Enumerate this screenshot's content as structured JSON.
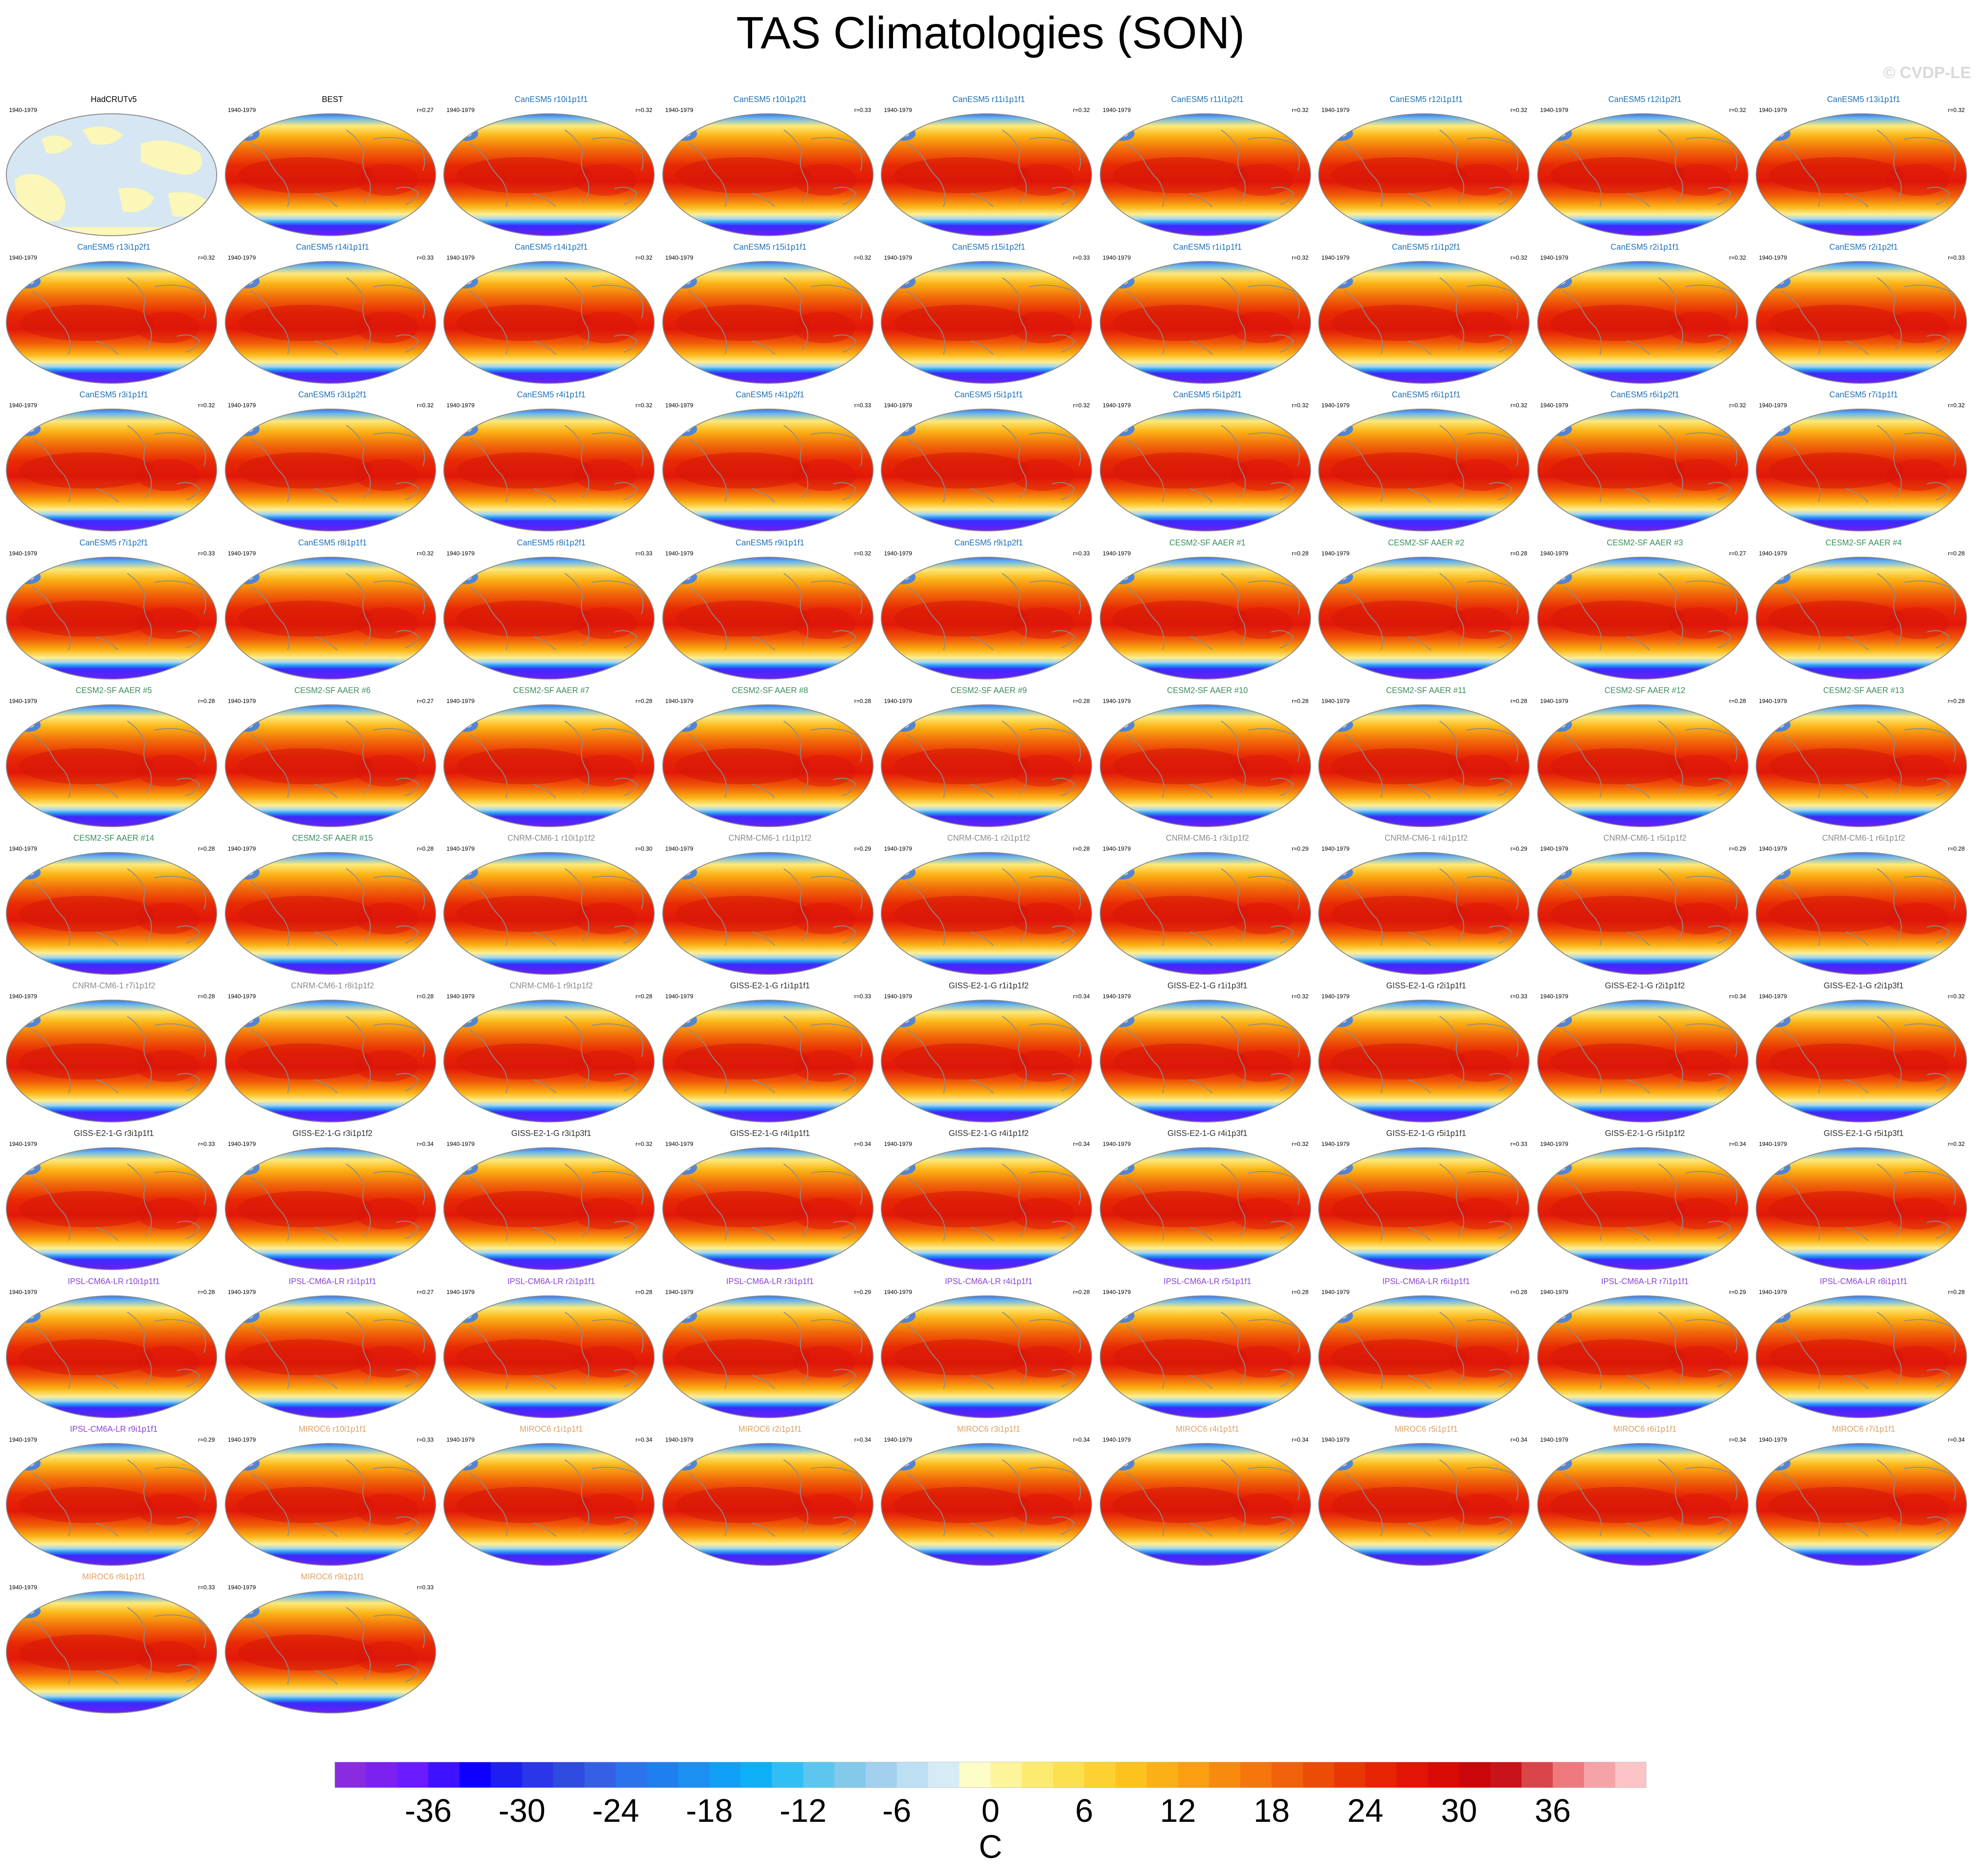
{
  "title": "TAS Climatologies (SON)",
  "credit": "© CVDP-LE",
  "period": "1940-1979",
  "panels": [
    {
      "name": "HadCRUTv5",
      "corr": "",
      "group": "obs-coverage"
    },
    {
      "name": "BEST",
      "corr": "r=0.27",
      "group": "obs"
    },
    {
      "name": "CanESM5 r10i1p1f1",
      "corr": "r=0.32",
      "group": "CanESM5"
    },
    {
      "name": "CanESM5 r10i1p2f1",
      "corr": "r=0.33",
      "group": "CanESM5"
    },
    {
      "name": "CanESM5 r11i1p1f1",
      "corr": "r=0.32",
      "group": "CanESM5"
    },
    {
      "name": "CanESM5 r11i1p2f1",
      "corr": "r=0.32",
      "group": "CanESM5"
    },
    {
      "name": "CanESM5 r12i1p1f1",
      "corr": "r=0.32",
      "group": "CanESM5"
    },
    {
      "name": "CanESM5 r12i1p2f1",
      "corr": "r=0.32",
      "group": "CanESM5"
    },
    {
      "name": "CanESM5 r13i1p1f1",
      "corr": "r=0.32",
      "group": "CanESM5"
    },
    {
      "name": "CanESM5 r13i1p2f1",
      "corr": "r=0.32",
      "group": "CanESM5"
    },
    {
      "name": "CanESM5 r14i1p1f1",
      "corr": "r=0.33",
      "group": "CanESM5"
    },
    {
      "name": "CanESM5 r14i1p2f1",
      "corr": "r=0.32",
      "group": "CanESM5"
    },
    {
      "name": "CanESM5 r15i1p1f1",
      "corr": "r=0.32",
      "group": "CanESM5"
    },
    {
      "name": "CanESM5 r15i1p2f1",
      "corr": "r=0.33",
      "group": "CanESM5"
    },
    {
      "name": "CanESM5 r1i1p1f1",
      "corr": "r=0.32",
      "group": "CanESM5"
    },
    {
      "name": "CanESM5 r1i1p2f1",
      "corr": "r=0.32",
      "group": "CanESM5"
    },
    {
      "name": "CanESM5 r2i1p1f1",
      "corr": "r=0.32",
      "group": "CanESM5"
    },
    {
      "name": "CanESM5 r2i1p2f1",
      "corr": "r=0.33",
      "group": "CanESM5"
    },
    {
      "name": "CanESM5 r3i1p1f1",
      "corr": "r=0.32",
      "group": "CanESM5"
    },
    {
      "name": "CanESM5 r3i1p2f1",
      "corr": "r=0.32",
      "group": "CanESM5"
    },
    {
      "name": "CanESM5 r4i1p1f1",
      "corr": "r=0.32",
      "group": "CanESM5"
    },
    {
      "name": "CanESM5 r4i1p2f1",
      "corr": "r=0.33",
      "group": "CanESM5"
    },
    {
      "name": "CanESM5 r5i1p1f1",
      "corr": "r=0.32",
      "group": "CanESM5"
    },
    {
      "name": "CanESM5 r5i1p2f1",
      "corr": "r=0.32",
      "group": "CanESM5"
    },
    {
      "name": "CanESM5 r6i1p1f1",
      "corr": "r=0.32",
      "group": "CanESM5"
    },
    {
      "name": "CanESM5 r6i1p2f1",
      "corr": "r=0.32",
      "group": "CanESM5"
    },
    {
      "name": "CanESM5 r7i1p1f1",
      "corr": "r=0.32",
      "group": "CanESM5"
    },
    {
      "name": "CanESM5 r7i1p2f1",
      "corr": "r=0.33",
      "group": "CanESM5"
    },
    {
      "name": "CanESM5 r8i1p1f1",
      "corr": "r=0.32",
      "group": "CanESM5"
    },
    {
      "name": "CanESM5 r8i1p2f1",
      "corr": "r=0.33",
      "group": "CanESM5"
    },
    {
      "name": "CanESM5 r9i1p1f1",
      "corr": "r=0.32",
      "group": "CanESM5"
    },
    {
      "name": "CanESM5 r9i1p2f1",
      "corr": "r=0.33",
      "group": "CanESM5"
    },
    {
      "name": "CESM2-SF AAER #1",
      "corr": "r=0.28",
      "group": "CESM2"
    },
    {
      "name": "CESM2-SF AAER #2",
      "corr": "r=0.28",
      "group": "CESM2"
    },
    {
      "name": "CESM2-SF AAER #3",
      "corr": "r=0.27",
      "group": "CESM2"
    },
    {
      "name": "CESM2-SF AAER #4",
      "corr": "r=0.28",
      "group": "CESM2"
    },
    {
      "name": "CESM2-SF AAER #5",
      "corr": "r=0.28",
      "group": "CESM2"
    },
    {
      "name": "CESM2-SF AAER #6",
      "corr": "r=0.27",
      "group": "CESM2"
    },
    {
      "name": "CESM2-SF AAER #7",
      "corr": "r=0.28",
      "group": "CESM2"
    },
    {
      "name": "CESM2-SF AAER #8",
      "corr": "r=0.28",
      "group": "CESM2"
    },
    {
      "name": "CESM2-SF AAER #9",
      "corr": "r=0.28",
      "group": "CESM2"
    },
    {
      "name": "CESM2-SF AAER #10",
      "corr": "r=0.28",
      "group": "CESM2"
    },
    {
      "name": "CESM2-SF AAER #11",
      "corr": "r=0.28",
      "group": "CESM2"
    },
    {
      "name": "CESM2-SF AAER #12",
      "corr": "r=0.28",
      "group": "CESM2"
    },
    {
      "name": "CESM2-SF AAER #13",
      "corr": "r=0.28",
      "group": "CESM2"
    },
    {
      "name": "CESM2-SF AAER #14",
      "corr": "r=0.28",
      "group": "CESM2"
    },
    {
      "name": "CESM2-SF AAER #15",
      "corr": "r=0.28",
      "group": "CESM2"
    },
    {
      "name": "CNRM-CM6-1 r10i1p1f2",
      "corr": "r=0.30",
      "group": "CNRM"
    },
    {
      "name": "CNRM-CM6-1 r1i1p1f2",
      "corr": "r=0.29",
      "group": "CNRM"
    },
    {
      "name": "CNRM-CM6-1 r2i1p1f2",
      "corr": "r=0.28",
      "group": "CNRM"
    },
    {
      "name": "CNRM-CM6-1 r3i1p1f2",
      "corr": "r=0.29",
      "group": "CNRM"
    },
    {
      "name": "CNRM-CM6-1 r4i1p1f2",
      "corr": "r=0.29",
      "group": "CNRM"
    },
    {
      "name": "CNRM-CM6-1 r5i1p1f2",
      "corr": "r=0.29",
      "group": "CNRM"
    },
    {
      "name": "CNRM-CM6-1 r6i1p1f2",
      "corr": "r=0.28",
      "group": "CNRM"
    },
    {
      "name": "CNRM-CM6-1 r7i1p1f2",
      "corr": "r=0.28",
      "group": "CNRM"
    },
    {
      "name": "CNRM-CM6-1 r8i1p1f2",
      "corr": "r=0.28",
      "group": "CNRM"
    },
    {
      "name": "CNRM-CM6-1 r9i1p1f2",
      "corr": "r=0.28",
      "group": "CNRM"
    },
    {
      "name": "GISS-E2-1-G r1i1p1f1",
      "corr": "r=0.33",
      "group": "GISS"
    },
    {
      "name": "GISS-E2-1-G r1i1p1f2",
      "corr": "r=0.34",
      "group": "GISS"
    },
    {
      "name": "GISS-E2-1-G r1i1p3f1",
      "corr": "r=0.32",
      "group": "GISS"
    },
    {
      "name": "GISS-E2-1-G r2i1p1f1",
      "corr": "r=0.33",
      "group": "GISS"
    },
    {
      "name": "GISS-E2-1-G r2i1p1f2",
      "corr": "r=0.34",
      "group": "GISS"
    },
    {
      "name": "GISS-E2-1-G r2i1p3f1",
      "corr": "r=0.32",
      "group": "GISS"
    },
    {
      "name": "GISS-E2-1-G r3i1p1f1",
      "corr": "r=0.33",
      "group": "GISS"
    },
    {
      "name": "GISS-E2-1-G r3i1p1f2",
      "corr": "r=0.34",
      "group": "GISS"
    },
    {
      "name": "GISS-E2-1-G r3i1p3f1",
      "corr": "r=0.32",
      "group": "GISS"
    },
    {
      "name": "GISS-E2-1-G r4i1p1f1",
      "corr": "r=0.34",
      "group": "GISS"
    },
    {
      "name": "GISS-E2-1-G r4i1p1f2",
      "corr": "r=0.34",
      "group": "GISS"
    },
    {
      "name": "GISS-E2-1-G r4i1p3f1",
      "corr": "r=0.32",
      "group": "GISS"
    },
    {
      "name": "GISS-E2-1-G r5i1p1f1",
      "corr": "r=0.33",
      "group": "GISS"
    },
    {
      "name": "GISS-E2-1-G r5i1p1f2",
      "corr": "r=0.34",
      "group": "GISS"
    },
    {
      "name": "GISS-E2-1-G r5i1p3f1",
      "corr": "r=0.32",
      "group": "GISS"
    },
    {
      "name": "IPSL-CM6A-LR r10i1p1f1",
      "corr": "r=0.28",
      "group": "IPSL"
    },
    {
      "name": "IPSL-CM6A-LR r1i1p1f1",
      "corr": "r=0.27",
      "group": "IPSL"
    },
    {
      "name": "IPSL-CM6A-LR r2i1p1f1",
      "corr": "r=0.28",
      "group": "IPSL"
    },
    {
      "name": "IPSL-CM6A-LR r3i1p1f1",
      "corr": "r=0.29",
      "group": "IPSL"
    },
    {
      "name": "IPSL-CM6A-LR r4i1p1f1",
      "corr": "r=0.28",
      "group": "IPSL"
    },
    {
      "name": "IPSL-CM6A-LR r5i1p1f1",
      "corr": "r=0.28",
      "group": "IPSL"
    },
    {
      "name": "IPSL-CM6A-LR r6i1p1f1",
      "corr": "r=0.28",
      "group": "IPSL"
    },
    {
      "name": "IPSL-CM6A-LR r7i1p1f1",
      "corr": "r=0.29",
      "group": "IPSL"
    },
    {
      "name": "IPSL-CM6A-LR r8i1p1f1",
      "corr": "r=0.28",
      "group": "IPSL"
    },
    {
      "name": "IPSL-CM6A-LR r9i1p1f1",
      "corr": "r=0.29",
      "group": "IPSL"
    },
    {
      "name": "MIROC6 r10i1p1f1",
      "corr": "r=0.33",
      "group": "MIROC6"
    },
    {
      "name": "MIROC6 r1i1p1f1",
      "corr": "r=0.34",
      "group": "MIROC6"
    },
    {
      "name": "MIROC6 r2i1p1f1",
      "corr": "r=0.34",
      "group": "MIROC6"
    },
    {
      "name": "MIROC6 r3i1p1f1",
      "corr": "r=0.34",
      "group": "MIROC6"
    },
    {
      "name": "MIROC6 r4i1p1f1",
      "corr": "r=0.34",
      "group": "MIROC6"
    },
    {
      "name": "MIROC6 r5i1p1f1",
      "corr": "r=0.34",
      "group": "MIROC6"
    },
    {
      "name": "MIROC6 r6i1p1f1",
      "corr": "r=0.34",
      "group": "MIROC6"
    },
    {
      "name": "MIROC6 r7i1p1f1",
      "corr": "r=0.34",
      "group": "MIROC6"
    },
    {
      "name": "MIROC6 r8i1p1f1",
      "corr": "r=0.33",
      "group": "MIROC6"
    },
    {
      "name": "MIROC6 r9i1p1f1",
      "corr": "r=0.33",
      "group": "MIROC6"
    }
  ],
  "group_colors": {
    "obs-coverage": "#000000",
    "obs": "#000000",
    "CanESM5": "#1f6fb4",
    "CESM2": "#3a8f5a",
    "CNRM": "#8c8c8c",
    "GISS": "#303030",
    "IPSL": "#8a43d6",
    "MIROC6": "#e0a060"
  },
  "chart_data": {
    "type": "heatmap",
    "title": "TAS Climatologies (SON)",
    "colorbar": {
      "unit": "C",
      "ticks": [
        -36,
        -30,
        -24,
        -18,
        -12,
        -6,
        0,
        6,
        12,
        18,
        24,
        30,
        36
      ],
      "range": [
        -42,
        42
      ],
      "interval": 2,
      "colors": [
        "#8a2be2",
        "#7b22f0",
        "#6a1bff",
        "#3f12ff",
        "#0e00ff",
        "#1d1ff0",
        "#2a36e8",
        "#2f4be0",
        "#3560e6",
        "#2b73ec",
        "#207fef",
        "#1b8ff2",
        "#10a0f5",
        "#0cb0f6",
        "#30bff5",
        "#5cc6ef",
        "#82c9ea",
        "#a2d0ee",
        "#bcdff3",
        "#d6ebf6",
        "#fdfdc8",
        "#fdf59a",
        "#fdeb70",
        "#fde04e",
        "#fdd230",
        "#fcc21e",
        "#fbb116",
        "#fa9e12",
        "#f88a0e",
        "#f5760b",
        "#f16109",
        "#ec4c06",
        "#e83704",
        "#e62303",
        "#e21403",
        "#d80b05",
        "#c90609",
        "#c9121a",
        "#d94548",
        "#ee7a7d",
        "#f6a3a8",
        "#fbc5c7"
      ]
    },
    "panel_field": "surface air temperature climatology, SON mean, 1940-1979"
  }
}
